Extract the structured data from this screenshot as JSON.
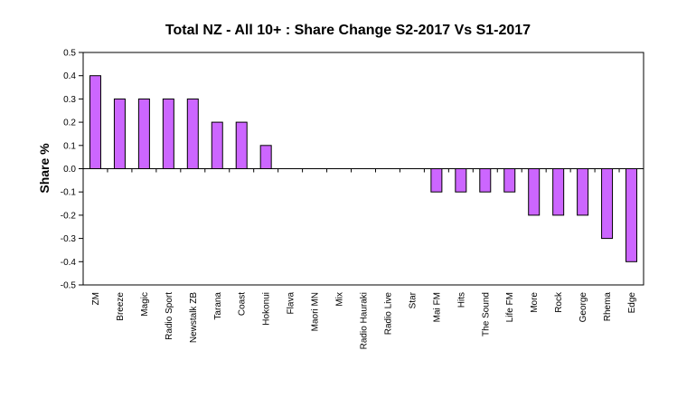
{
  "chart_data": {
    "type": "bar",
    "title": "Total NZ - All 10+ : Share Change  S2-2017 Vs S1-2017",
    "xlabel": "",
    "ylabel": "Share  %",
    "ylim": [
      -0.5,
      0.5
    ],
    "yticks": [
      "0.5",
      "0.4",
      "0.3",
      "0.2",
      "0.1",
      "0.0",
      "-0.1",
      "-0.2",
      "-0.3",
      "-0.4",
      "-0.5"
    ],
    "grid": false,
    "legend": "none",
    "bar_color": "#cc66ff",
    "bar_edge_color": "#000000",
    "categories": [
      "ZM",
      "Breeze",
      "Magic",
      "Radio Sport",
      "Newstalk ZB",
      "Tarana",
      "Coast",
      "Hokonui",
      "Flava",
      "Maori MN",
      "Mix",
      "Radio Hauraki",
      "Radio Live",
      "Star",
      "Mai FM",
      "Hits",
      "The Sound",
      "Life FM",
      "More",
      "Rock",
      "George",
      "Rhema",
      "Edge"
    ],
    "values": [
      0.4,
      0.3,
      0.3,
      0.3,
      0.3,
      0.2,
      0.2,
      0.1,
      0.0,
      0.0,
      0.0,
      0.0,
      0.0,
      0.0,
      -0.1,
      -0.1,
      -0.1,
      -0.1,
      -0.2,
      -0.2,
      -0.2,
      -0.3,
      -0.4
    ]
  }
}
